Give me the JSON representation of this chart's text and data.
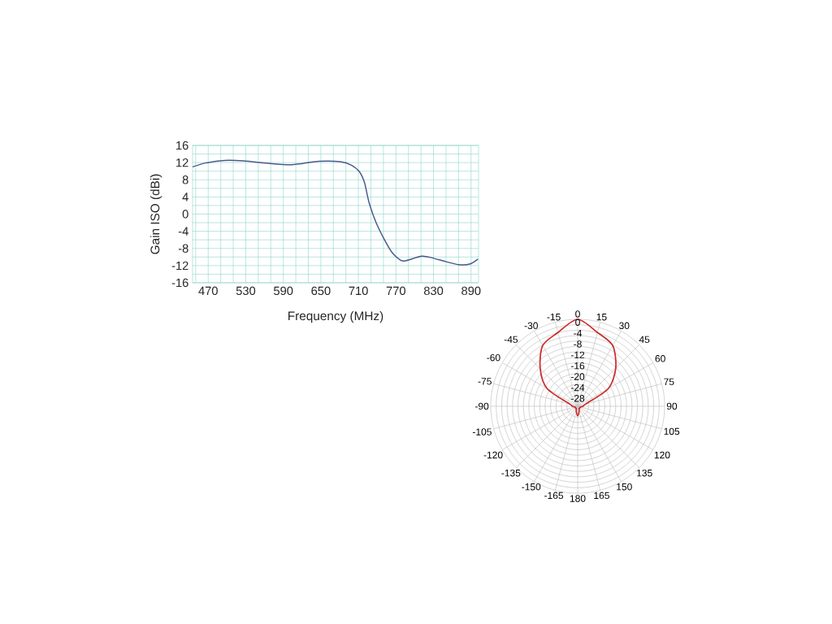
{
  "chart_data": [
    {
      "type": "line",
      "xlabel": "Frequency (MHz)",
      "ylabel": "Gain ISO (dBi)",
      "color": "#4a5a8c",
      "x": [
        445,
        466,
        496,
        526,
        569,
        600,
        621,
        647,
        681,
        699,
        712,
        720,
        727,
        738,
        751,
        764,
        777,
        785,
        811,
        828,
        850,
        871,
        889,
        901
      ],
      "values": [
        11.0,
        11.9,
        12.5,
        12.4,
        11.8,
        11.5,
        11.8,
        12.3,
        12.2,
        11.4,
        9.8,
        7.2,
        2.7,
        -1.9,
        -5.8,
        -9.0,
        -10.7,
        -10.9,
        -9.8,
        -10.2,
        -11.1,
        -11.8,
        -11.6,
        -10.5
      ],
      "xlim": [
        445,
        902
      ],
      "ylim": [
        -16,
        16
      ],
      "xticks": [
        {
          "value": 450,
          "label": null
        },
        470,
        {
          "value": 490,
          "label": null
        },
        {
          "value": 510,
          "label": null
        },
        530,
        {
          "value": 550,
          "label": null
        },
        {
          "value": 570,
          "label": null
        },
        590,
        {
          "value": 610,
          "label": null
        },
        {
          "value": 630,
          "label": null
        },
        650,
        {
          "value": 670,
          "label": null
        },
        {
          "value": 690,
          "label": null
        },
        710,
        {
          "value": 730,
          "label": null
        },
        {
          "value": 750,
          "label": null
        },
        770,
        {
          "value": 790,
          "label": null
        },
        {
          "value": 810,
          "label": null
        },
        830,
        {
          "value": 850,
          "label": null
        },
        {
          "value": 870,
          "label": null
        },
        890
      ],
      "yticks": [
        -16,
        {
          "value": -14,
          "label": null
        },
        -12,
        {
          "value": -10,
          "label": null
        },
        -8,
        {
          "value": -6,
          "label": null
        },
        -4,
        {
          "value": -2,
          "label": null
        },
        0,
        {
          "value": 2,
          "label": null
        },
        4,
        {
          "value": 6,
          "label": null
        },
        8,
        {
          "value": 10,
          "label": null
        },
        12,
        {
          "value": 14,
          "label": null
        },
        16
      ],
      "grid": true
    },
    {
      "type": "radar",
      "categories": [
        "0",
        "15",
        "30",
        "45",
        "60",
        "75",
        "90",
        "105",
        "120",
        "135",
        "150",
        "165",
        "180",
        "-165",
        "-150",
        "-135",
        "-120",
        "-105",
        "-90",
        "-75",
        "-60",
        "-45",
        "-30",
        "-15"
      ],
      "series": [
        {
          "color": "#cc2a2a",
          "values": [
            0,
            -3.9,
            -6.2,
            -12.2,
            -19,
            -29,
            -30,
            -31,
            -31,
            -31,
            -31,
            -30,
            -28.5,
            -30,
            -31,
            -31,
            -31,
            -31,
            -30,
            -29,
            -19,
            -12.5,
            -6.2,
            -3.9
          ]
        }
      ],
      "ylim": [
        -32,
        0
      ],
      "yticks": [
        0,
        -4,
        -8,
        -12,
        -16,
        -20,
        -24,
        -28
      ],
      "grid": true
    }
  ]
}
